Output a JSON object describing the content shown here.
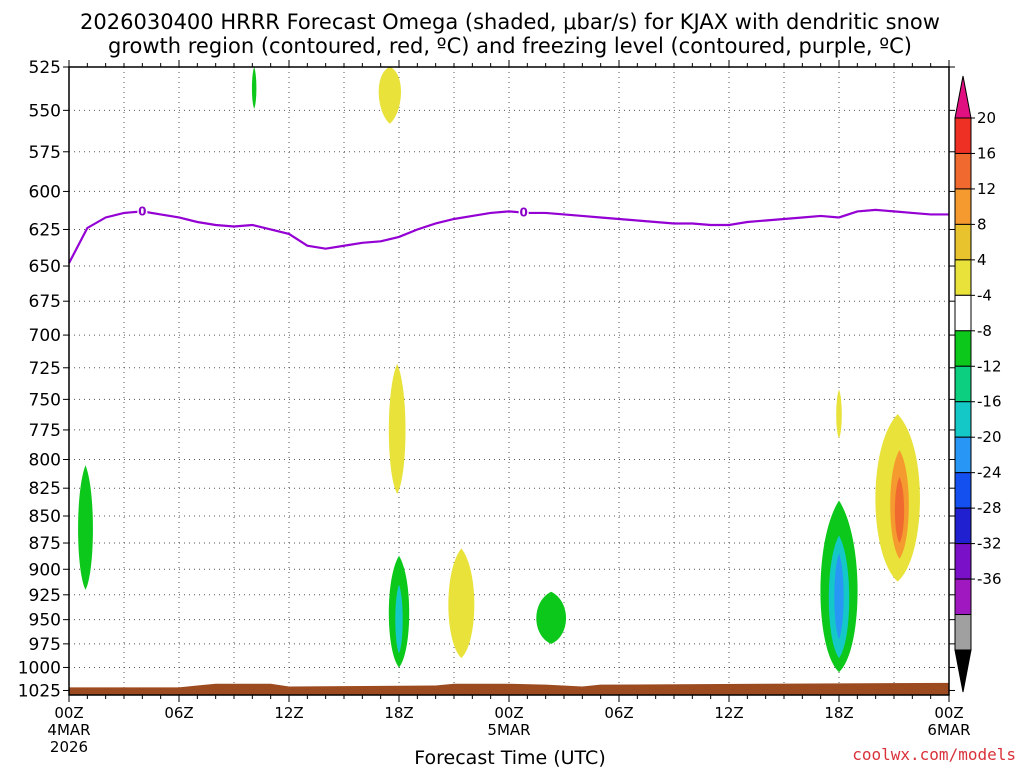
{
  "title": {
    "line1": "2026030400 HRRR Forecast Omega (shaded, μbar/s) for KJAX with dendritic snow",
    "line2": "growth region (contoured, red, ºC) and freezing level (contoured, purple, ºC)"
  },
  "credit": "coolwx.com/models",
  "chart_data": {
    "type": "heatmap",
    "xlabel": "Forecast Time (UTC)",
    "ylabel": "",
    "x_ticks": [
      {
        "hour": 0,
        "label": "00Z",
        "date": "4MAR",
        "year": "2026"
      },
      {
        "hour": 6,
        "label": "06Z"
      },
      {
        "hour": 12,
        "label": "12Z"
      },
      {
        "hour": 18,
        "label": "18Z"
      },
      {
        "hour": 24,
        "label": "00Z",
        "date": "5MAR"
      },
      {
        "hour": 30,
        "label": "06Z"
      },
      {
        "hour": 36,
        "label": "12Z"
      },
      {
        "hour": 42,
        "label": "18Z"
      },
      {
        "hour": 48,
        "label": "00Z",
        "date": "6MAR"
      }
    ],
    "xlim": [
      0,
      48
    ],
    "y_ticks": [
      525,
      550,
      575,
      600,
      625,
      650,
      675,
      700,
      725,
      750,
      775,
      800,
      825,
      850,
      875,
      900,
      925,
      950,
      975,
      1000,
      1025
    ],
    "ylim": [
      525,
      1030
    ],
    "y_axis": "pressure, log scale, inverted",
    "grid": true,
    "colorbar": {
      "ticks": [
        "20",
        "16",
        "12",
        "8",
        "4",
        "-4",
        "-8",
        "-12",
        "-16",
        "-20",
        "-24",
        "-28",
        "-32",
        "-36"
      ],
      "colors": [
        "#e01080",
        "#ee3024",
        "#f06a30",
        "#f59a2e",
        "#e8c32e",
        "#e8e23a",
        "#ffffff",
        "#0bc81a",
        "#0cd080",
        "#14c8c8",
        "#2896f5",
        "#1450f0",
        "#2020d0",
        "#7a10c8",
        "#a018c0",
        "#a0a0a0",
        "#000000"
      ]
    },
    "freezing_level": {
      "label": "0",
      "color": "#9400d3",
      "points": [
        [
          0,
          648
        ],
        [
          1,
          624
        ],
        [
          2,
          617
        ],
        [
          3,
          614
        ],
        [
          4,
          613
        ],
        [
          5,
          615
        ],
        [
          6,
          617
        ],
        [
          7,
          620
        ],
        [
          8,
          622
        ],
        [
          9,
          623
        ],
        [
          10,
          622
        ],
        [
          11,
          625
        ],
        [
          12,
          628
        ],
        [
          13,
          636
        ],
        [
          14,
          638
        ],
        [
          15,
          636
        ],
        [
          16,
          634
        ],
        [
          17,
          633
        ],
        [
          18,
          630
        ],
        [
          19,
          625
        ],
        [
          20,
          621
        ],
        [
          21,
          618
        ],
        [
          22,
          616
        ],
        [
          23,
          614
        ],
        [
          24,
          613
        ],
        [
          25,
          614
        ],
        [
          26,
          614
        ],
        [
          27,
          615
        ],
        [
          28,
          616
        ],
        [
          29,
          617
        ],
        [
          30,
          618
        ],
        [
          31,
          619
        ],
        [
          32,
          620
        ],
        [
          33,
          621
        ],
        [
          34,
          621
        ],
        [
          35,
          622
        ],
        [
          36,
          622
        ],
        [
          37,
          620
        ],
        [
          38,
          619
        ],
        [
          39,
          618
        ],
        [
          40,
          617
        ],
        [
          41,
          616
        ],
        [
          42,
          617
        ],
        [
          43,
          613
        ],
        [
          44,
          612
        ],
        [
          45,
          613
        ],
        [
          46,
          614
        ],
        [
          47,
          615
        ],
        [
          48,
          615
        ]
      ],
      "label_hours": [
        4,
        24.8
      ]
    },
    "omega_features": [
      {
        "kind": "negative",
        "band": "-8",
        "center": [
          0.9,
          862
        ],
        "half_width_h": 0.4,
        "top": 805,
        "bottom": 920
      },
      {
        "kind": "negative",
        "band": "-8",
        "center": [
          10.1,
          537
        ],
        "half_width_h": 0.12,
        "top": 525,
        "bottom": 549
      },
      {
        "kind": "positive",
        "band": "4",
        "center": [
          17.5,
          533
        ],
        "half_width_h": 0.6,
        "top": 525,
        "bottom": 558
      },
      {
        "kind": "positive",
        "band": "4",
        "center": [
          17.9,
          775
        ],
        "half_width_h": 0.45,
        "top": 722,
        "bottom": 830
      },
      {
        "kind": "negative",
        "band": "-8",
        "center": [
          18.0,
          944
        ],
        "half_width_h": 0.55,
        "top": 887,
        "bottom": 1000
      },
      {
        "kind": "negative",
        "band": "-12",
        "center": [
          18.0,
          950
        ],
        "half_width_h": 0.2,
        "top": 915,
        "bottom": 985
      },
      {
        "kind": "positive",
        "band": "4",
        "center": [
          21.4,
          935
        ],
        "half_width_h": 0.7,
        "top": 880,
        "bottom": 990
      },
      {
        "kind": "negative",
        "band": "-8",
        "center": [
          2.3,
          948
        ],
        "half_width_h": 0.8,
        "top": 922,
        "bottom": 975,
        "offset_day": 1
      },
      {
        "kind": "positive",
        "band": "4",
        "center": [
          42.0,
          763
        ],
        "half_width_h": 0.15,
        "top": 742,
        "bottom": 782
      },
      {
        "kind": "negative",
        "band": "-8",
        "center": [
          42.0,
          930
        ],
        "half_width_h": 1.0,
        "top": 836,
        "bottom": 1005
      },
      {
        "kind": "negative",
        "band": "-12",
        "center": [
          42.0,
          930
        ],
        "half_width_h": 0.55,
        "top": 868,
        "bottom": 990
      },
      {
        "kind": "negative",
        "band": "-16",
        "center": [
          42.0,
          925
        ],
        "half_width_h": 0.25,
        "top": 885,
        "bottom": 970
      },
      {
        "kind": "positive",
        "band": "4",
        "center": [
          45.2,
          832
        ],
        "half_width_h": 1.2,
        "top": 762,
        "bottom": 912
      },
      {
        "kind": "positive",
        "band": "8",
        "center": [
          45.3,
          838
        ],
        "half_width_h": 0.5,
        "top": 792,
        "bottom": 890
      },
      {
        "kind": "positive",
        "band": "12",
        "center": [
          45.3,
          845
        ],
        "half_width_h": 0.25,
        "top": 815,
        "bottom": 875
      }
    ],
    "terrain_color": "#9c4a20"
  }
}
